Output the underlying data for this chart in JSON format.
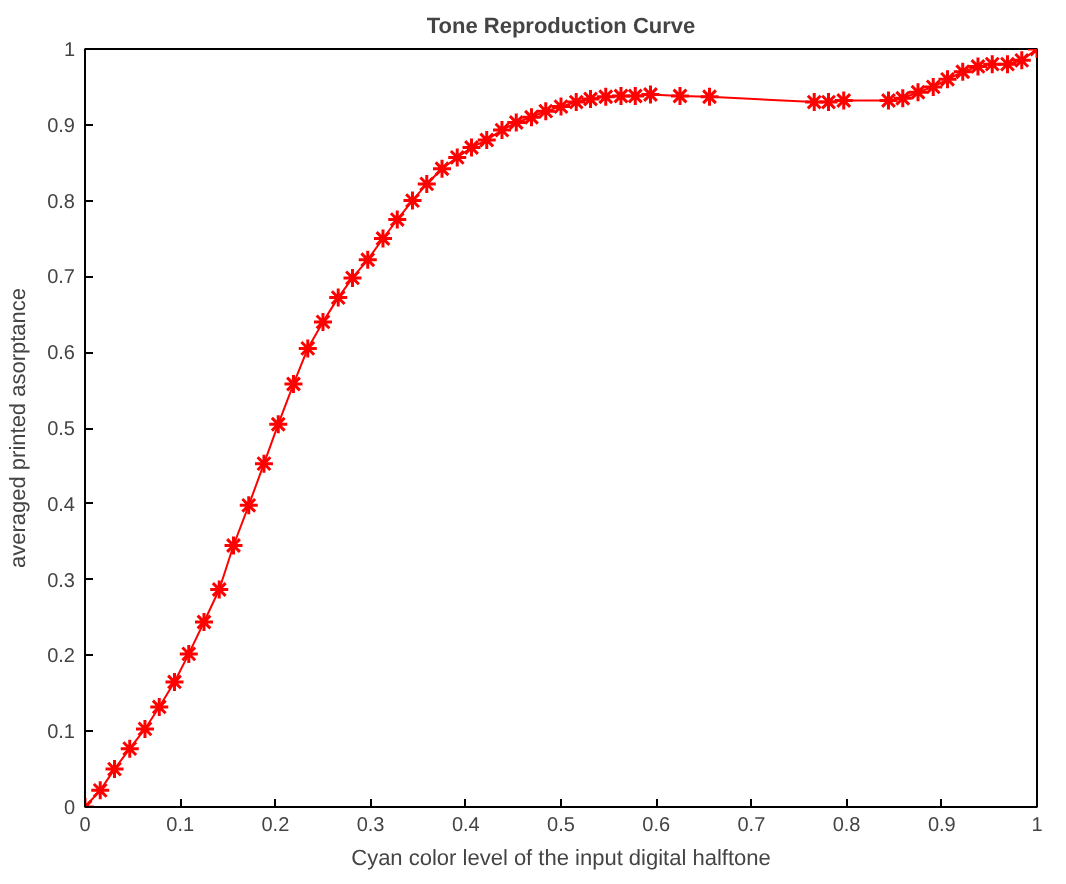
{
  "chart_data": {
    "type": "line",
    "title": "Tone Reproduction Curve",
    "xlabel": "Cyan color level of the input digital halftone",
    "ylabel": "averaged printed asorptance",
    "x": [
      0,
      0.016,
      0.031,
      0.047,
      0.063,
      0.078,
      0.094,
      0.109,
      0.125,
      0.141,
      0.156,
      0.172,
      0.188,
      0.203,
      0.219,
      0.234,
      0.25,
      0.266,
      0.281,
      0.297,
      0.313,
      0.328,
      0.344,
      0.359,
      0.375,
      0.391,
      0.406,
      0.422,
      0.438,
      0.453,
      0.469,
      0.484,
      0.5,
      0.516,
      0.531,
      0.547,
      0.563,
      0.578,
      0.594,
      0.625,
      0.656,
      0.766,
      0.781,
      0.797,
      0.844,
      0.859,
      0.875,
      0.891,
      0.906,
      0.922,
      0.938,
      0.953,
      0.969,
      0.984,
      1
    ],
    "series": [
      {
        "color": "#ff0000",
        "values": [
          0,
          0.022,
          0.05,
          0.077,
          0.103,
          0.132,
          0.165,
          0.202,
          0.244,
          0.287,
          0.345,
          0.398,
          0.453,
          0.505,
          0.558,
          0.605,
          0.64,
          0.672,
          0.698,
          0.722,
          0.75,
          0.775,
          0.8,
          0.822,
          0.842,
          0.857,
          0.87,
          0.88,
          0.893,
          0.903,
          0.91,
          0.918,
          0.924,
          0.93,
          0.934,
          0.937,
          0.938,
          0.938,
          0.94,
          0.938,
          0.937,
          0.93,
          0.93,
          0.932,
          0.932,
          0.935,
          0.943,
          0.95,
          0.96,
          0.97,
          0.977,
          0.98,
          0.98,
          0.985,
          1
        ]
      }
    ],
    "xlim": [
      0,
      1
    ],
    "ylim": [
      0,
      1
    ],
    "xticks": [
      0,
      0.1,
      0.2,
      0.3,
      0.4,
      0.5,
      0.6,
      0.7,
      0.8,
      0.9,
      1
    ],
    "yticks": [
      0,
      0.1,
      0.2,
      0.3,
      0.4,
      0.5,
      0.6,
      0.7,
      0.8,
      0.9,
      1
    ],
    "marker": "cross",
    "line_style": "solid",
    "grid": false
  }
}
